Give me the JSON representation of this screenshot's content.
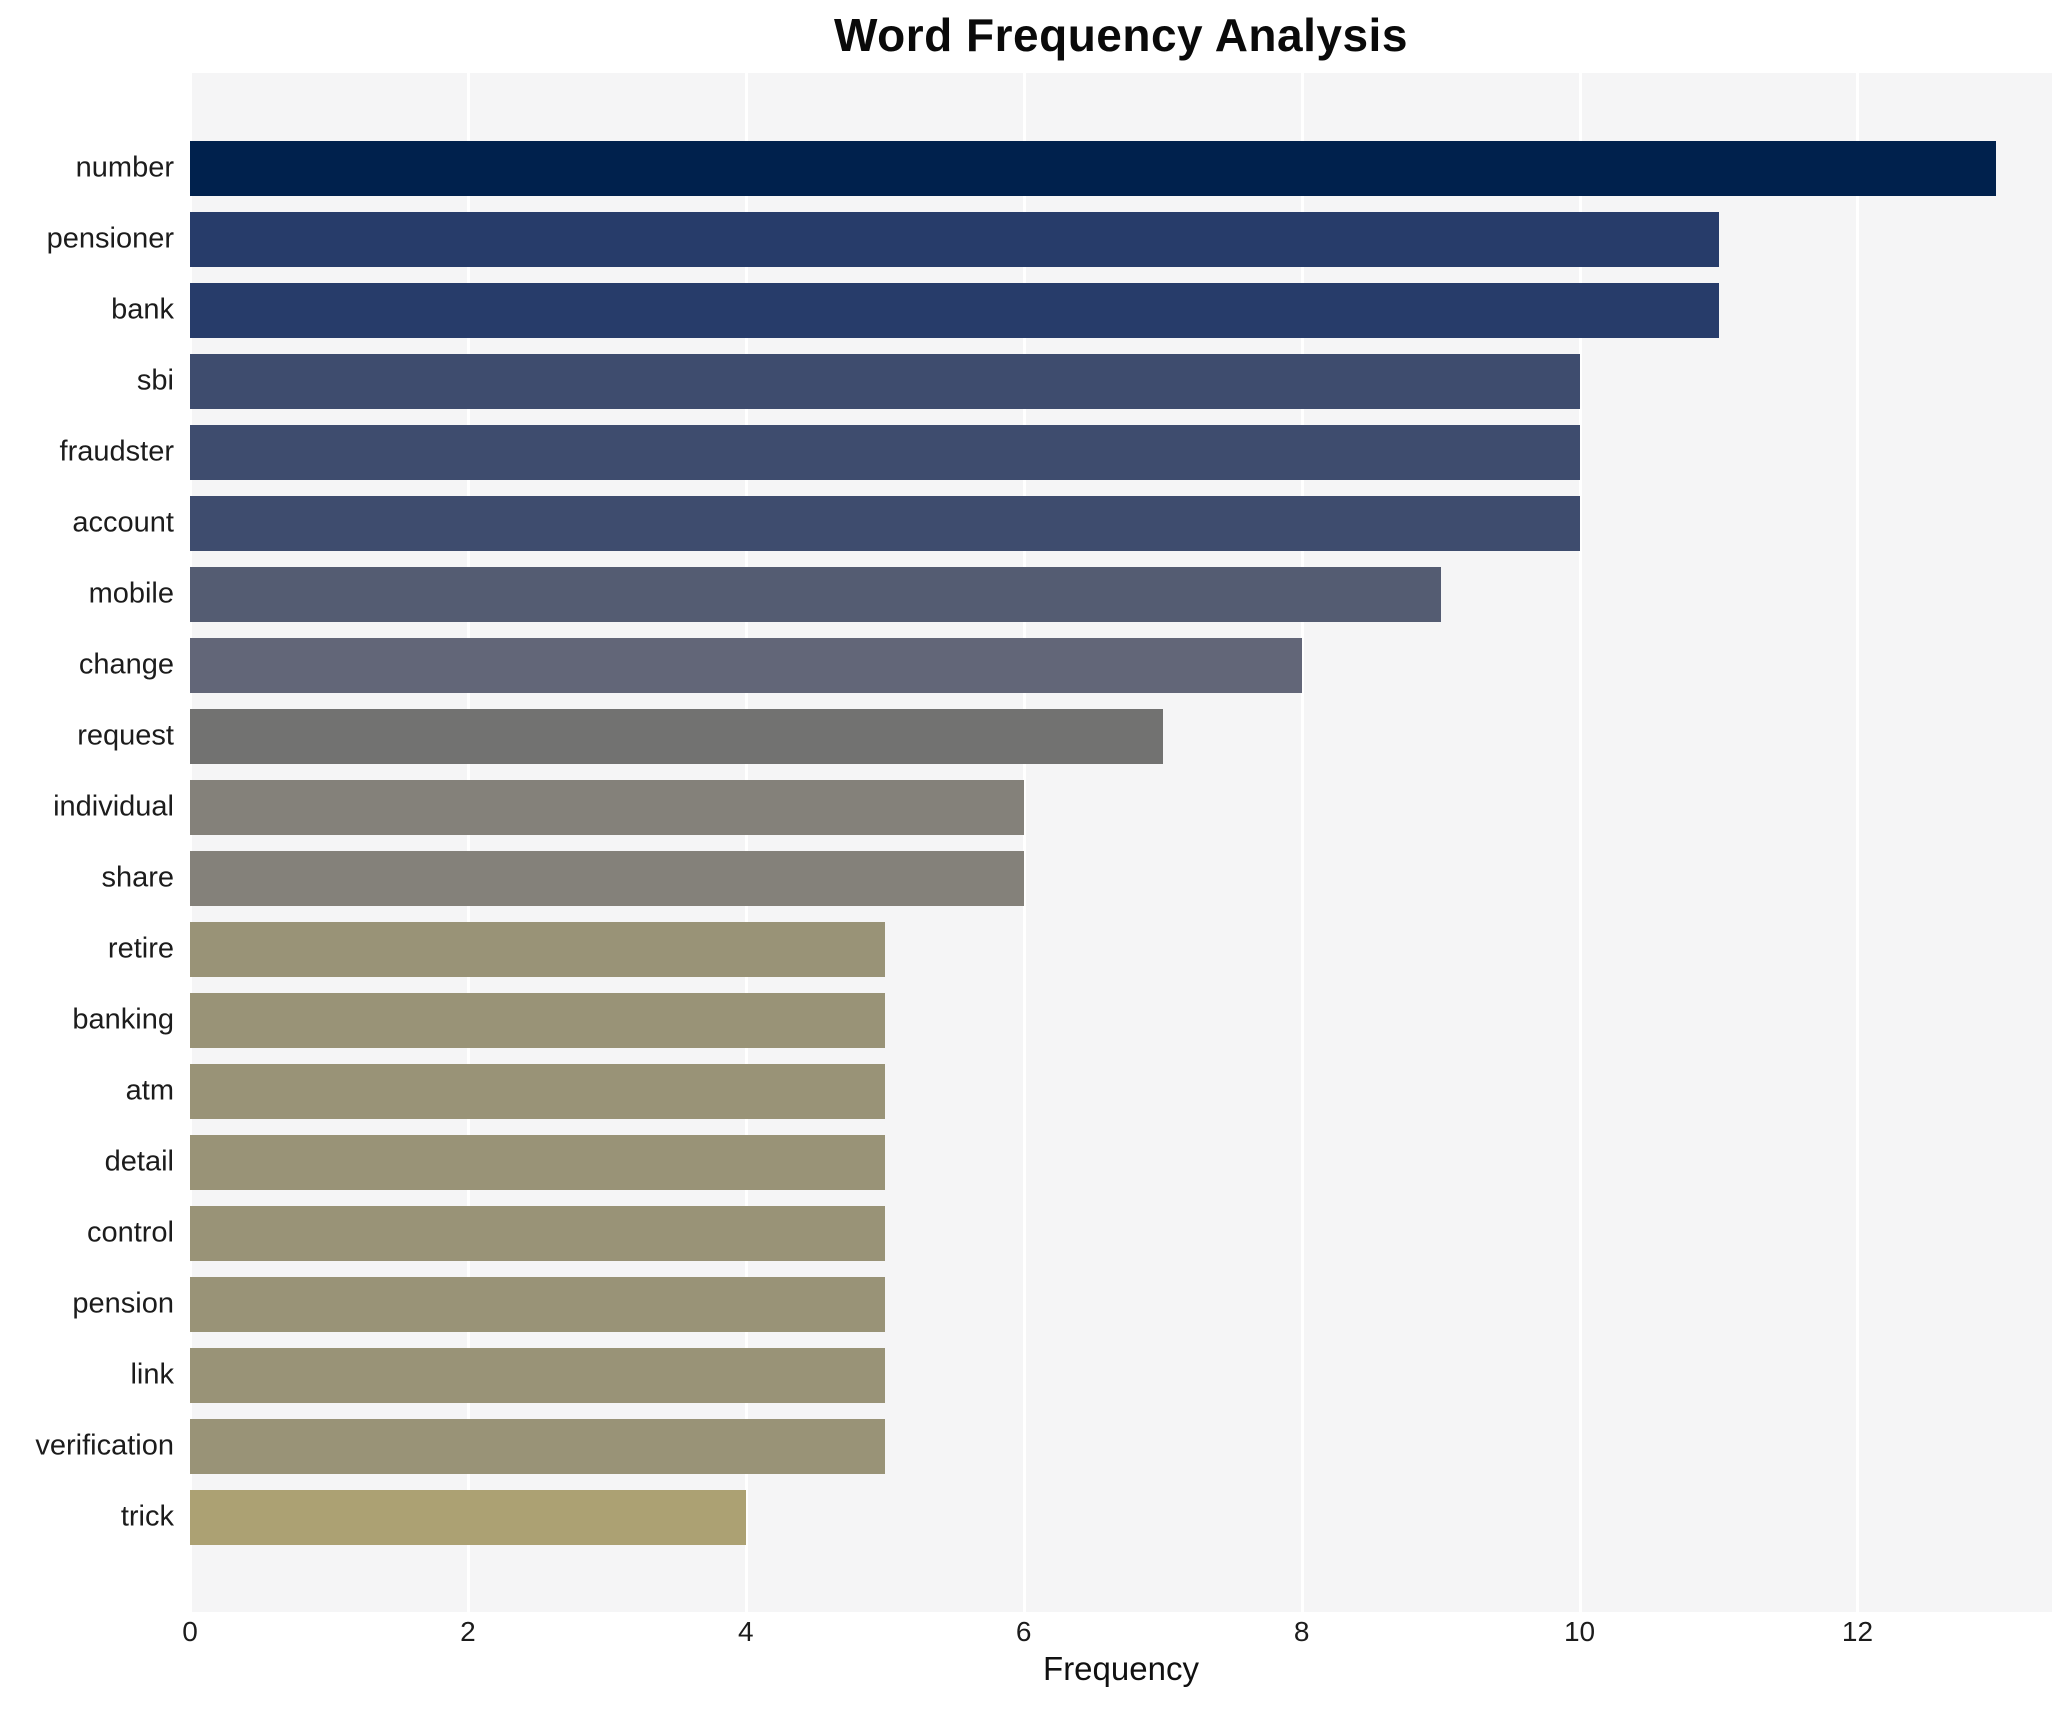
{
  "chart_data": {
    "type": "bar",
    "orientation": "horizontal",
    "title": "Word Frequency Analysis",
    "xlabel": "Frequency",
    "ylabel": "",
    "categories": [
      "number",
      "pensioner",
      "bank",
      "sbi",
      "fraudster",
      "account",
      "mobile",
      "change",
      "request",
      "individual",
      "share",
      "retire",
      "banking",
      "atm",
      "detail",
      "control",
      "pension",
      "link",
      "verification",
      "trick"
    ],
    "values": [
      13,
      11,
      11,
      10,
      10,
      10,
      9,
      8,
      7,
      6,
      6,
      5,
      5,
      5,
      5,
      5,
      5,
      5,
      5,
      4
    ],
    "bar_colors": [
      "#00214d",
      "#273c6a",
      "#273c6a",
      "#3e4c6e",
      "#3e4c6e",
      "#3e4c6e",
      "#545c72",
      "#626678",
      "#727271",
      "#84817a",
      "#84817a",
      "#999377",
      "#999377",
      "#999377",
      "#999377",
      "#999377",
      "#999377",
      "#999377",
      "#999377",
      "#aca173"
    ],
    "xticks": [
      0,
      2,
      4,
      6,
      8,
      10,
      12
    ],
    "xlim": [
      0,
      13.4
    ],
    "grid": true,
    "legend_position": "none",
    "plot_background": "#f5f5f6",
    "grid_color": "#ffffff"
  }
}
